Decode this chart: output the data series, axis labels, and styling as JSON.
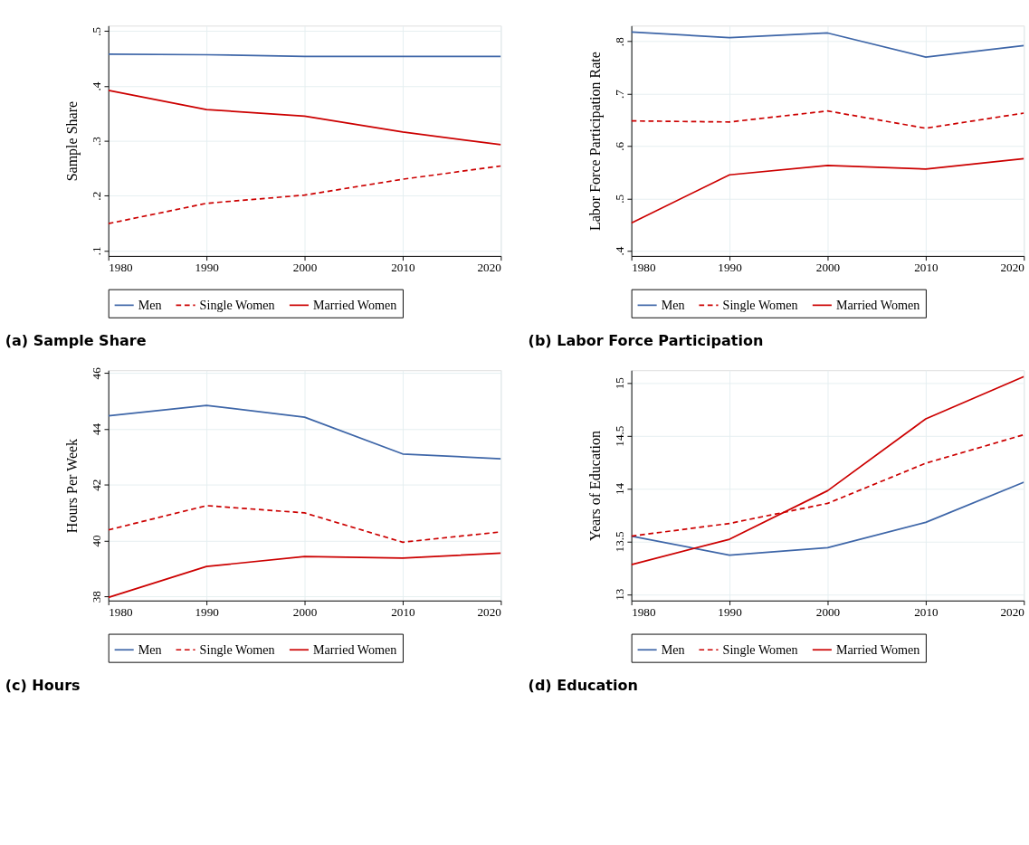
{
  "chart_data": [
    {
      "type": "line",
      "title": "(a) Sample Share",
      "ylabel": "Sample Share",
      "x": [
        1980,
        1990,
        2000,
        2010,
        2020
      ],
      "xlim": [
        1980,
        2020
      ],
      "xticks": [
        1980,
        1990,
        2000,
        2010,
        2020
      ],
      "ylim": [
        0.09,
        0.51
      ],
      "yticks": [
        {
          "value": 0.1,
          "label": ".1"
        },
        {
          "value": 0.2,
          "label": ".2"
        },
        {
          "value": 0.3,
          "label": ".3"
        },
        {
          "value": 0.4,
          "label": ".4"
        },
        {
          "value": 0.5,
          "label": ".5"
        }
      ],
      "grid": true,
      "legend": "bottom",
      "series": [
        {
          "name": "Men",
          "color": "#3e66a8",
          "line_style": "solid",
          "values": [
            0.458,
            0.457,
            0.454,
            0.454,
            0.454
          ]
        },
        {
          "name": "Single Women",
          "color": "#cc0000",
          "line_style": "dashed",
          "values": [
            0.149,
            0.186,
            0.201,
            0.23,
            0.254
          ]
        },
        {
          "name": "Married Women",
          "color": "#cc0000",
          "line_style": "solid",
          "values": [
            0.392,
            0.357,
            0.345,
            0.316,
            0.293
          ]
        }
      ]
    },
    {
      "type": "line",
      "title": "(b) Labor Force Participation",
      "ylabel": "Labor Force Participation Rate",
      "x": [
        1980,
        1990,
        2000,
        2010,
        2020
      ],
      "xlim": [
        1980,
        2020
      ],
      "xticks": [
        1980,
        1990,
        2000,
        2010,
        2020
      ],
      "ylim": [
        0.39,
        0.83
      ],
      "yticks": [
        {
          "value": 0.4,
          "label": ".4"
        },
        {
          "value": 0.5,
          "label": ".5"
        },
        {
          "value": 0.6,
          "label": ".6"
        },
        {
          "value": 0.7,
          "label": ".7"
        },
        {
          "value": 0.8,
          "label": ".8"
        }
      ],
      "grid": true,
      "legend": "bottom",
      "series": [
        {
          "name": "Men",
          "color": "#3e66a8",
          "line_style": "solid",
          "values": [
            0.818,
            0.807,
            0.816,
            0.77,
            0.792
          ]
        },
        {
          "name": "Single Women",
          "color": "#cc0000",
          "line_style": "dashed",
          "values": [
            0.648,
            0.646,
            0.667,
            0.634,
            0.663
          ]
        },
        {
          "name": "Married Women",
          "color": "#cc0000",
          "line_style": "solid",
          "values": [
            0.453,
            0.545,
            0.563,
            0.556,
            0.576
          ]
        }
      ]
    },
    {
      "type": "line",
      "title": "(c) Hours",
      "ylabel": "Hours Per Week",
      "x": [
        1980,
        1990,
        2000,
        2010,
        2020
      ],
      "xlim": [
        1980,
        2020
      ],
      "xticks": [
        1980,
        1990,
        2000,
        2010,
        2020
      ],
      "ylim": [
        37.85,
        46.1
      ],
      "yticks": [
        38,
        40,
        42,
        44,
        46
      ],
      "grid": true,
      "legend": "bottom",
      "series": [
        {
          "name": "Men",
          "color": "#3e66a8",
          "line_style": "solid",
          "values": [
            44.47,
            44.84,
            44.42,
            43.1,
            42.93
          ]
        },
        {
          "name": "Single Women",
          "color": "#cc0000",
          "line_style": "dashed",
          "values": [
            40.38,
            41.25,
            40.99,
            39.94,
            40.31
          ]
        },
        {
          "name": "Married Women",
          "color": "#cc0000",
          "line_style": "solid",
          "values": [
            37.96,
            39.07,
            39.43,
            39.37,
            39.55
          ]
        }
      ]
    },
    {
      "type": "line",
      "title": "(d) Education",
      "ylabel": "Years of Education",
      "x": [
        1980,
        1990,
        2000,
        2010,
        2020
      ],
      "xlim": [
        1980,
        2020
      ],
      "xticks": [
        1980,
        1990,
        2000,
        2010,
        2020
      ],
      "ylim": [
        12.94,
        15.12
      ],
      "yticks": [
        13,
        13.5,
        14,
        14.5,
        15
      ],
      "grid": true,
      "legend": "bottom",
      "series": [
        {
          "name": "Men",
          "color": "#3e66a8",
          "line_style": "solid",
          "values": [
            13.55,
            13.37,
            13.44,
            13.68,
            14.06
          ]
        },
        {
          "name": "Single Women",
          "color": "#cc0000",
          "line_style": "dashed",
          "values": [
            13.55,
            13.67,
            13.86,
            14.24,
            14.51
          ]
        },
        {
          "name": "Married Women",
          "color": "#cc0000",
          "line_style": "solid",
          "values": [
            13.28,
            13.52,
            13.98,
            14.66,
            15.06
          ]
        }
      ]
    }
  ]
}
